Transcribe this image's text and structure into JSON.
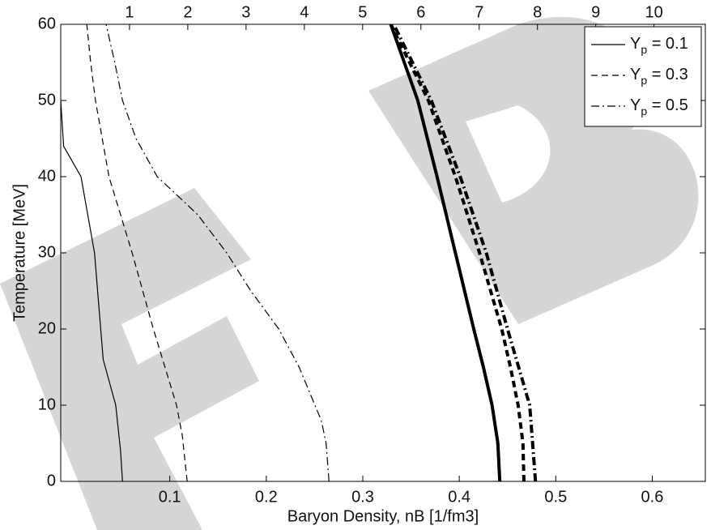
{
  "chart_data": {
    "type": "line",
    "xlabel": "Baryon Density, nB [1/fm3]",
    "ylabel": "Temperature [MeV]",
    "xlim": [
      -0.013,
      0.655
    ],
    "xticks": [
      0.1,
      0.2,
      0.3,
      0.4,
      0.5,
      0.6
    ],
    "x2lim": [
      -0.18,
      10.88
    ],
    "x2ticks": [
      1,
      2,
      3,
      4,
      5,
      6,
      7,
      8,
      9,
      10
    ],
    "ylim": [
      0,
      60
    ],
    "yticks": [
      0,
      10,
      20,
      30,
      40,
      50,
      60
    ],
    "legend": "upper right",
    "series": [
      {
        "name": "Yp = 0.1",
        "color": "#000000",
        "style": "solid",
        "linewidth": 1.2,
        "x": [
          0.051,
          0.049,
          0.044,
          0.031,
          0.022,
          0.008,
          -0.01,
          -0.013
        ],
        "y": [
          0,
          4,
          10,
          16,
          30,
          40,
          44,
          50
        ]
      },
      {
        "name": "Yp = 0.3",
        "color": "#000000",
        "style": "dashed",
        "linewidth": 1.2,
        "x": [
          0.118,
          0.113,
          0.107,
          0.083,
          0.061,
          0.037,
          0.023,
          0.018,
          0.014
        ],
        "y": [
          0,
          6,
          10,
          20,
          30,
          40,
          50,
          55,
          60
        ]
      },
      {
        "name": "Yp = 0.5",
        "color": "#000000",
        "style": "dashdot",
        "linewidth": 1.2,
        "x": [
          0.265,
          0.262,
          0.257,
          0.234,
          0.213,
          0.184,
          0.159,
          0.129,
          0.104,
          0.087,
          0.065,
          0.051,
          0.043,
          0.034
        ],
        "y": [
          0,
          5,
          8,
          15,
          20,
          25,
          30,
          35,
          38,
          40,
          45,
          50,
          55,
          60
        ]
      },
      {
        "color": "#000000",
        "style": "solid",
        "linewidth": 4,
        "x": [
          0.442,
          0.44,
          0.434,
          0.425,
          0.415,
          0.396,
          0.377,
          0.357,
          0.329
        ],
        "y": [
          0,
          5,
          10,
          15,
          20,
          30,
          40,
          50,
          60
        ]
      },
      {
        "color": "#000000",
        "style": "dashed",
        "linewidth": 4,
        "x": [
          0.467,
          0.466,
          0.461,
          0.453,
          0.444,
          0.421,
          0.396,
          0.368,
          0.329
        ],
        "y": [
          0,
          5,
          10,
          15,
          20,
          30,
          40,
          50,
          60
        ]
      },
      {
        "color": "#000000",
        "style": "dashdot",
        "linewidth": 4,
        "x": [
          0.479,
          0.473,
          0.45,
          0.428,
          0.401,
          0.371,
          0.332
        ],
        "y": [
          0,
          10,
          20,
          30,
          40,
          50,
          60
        ]
      }
    ]
  }
}
